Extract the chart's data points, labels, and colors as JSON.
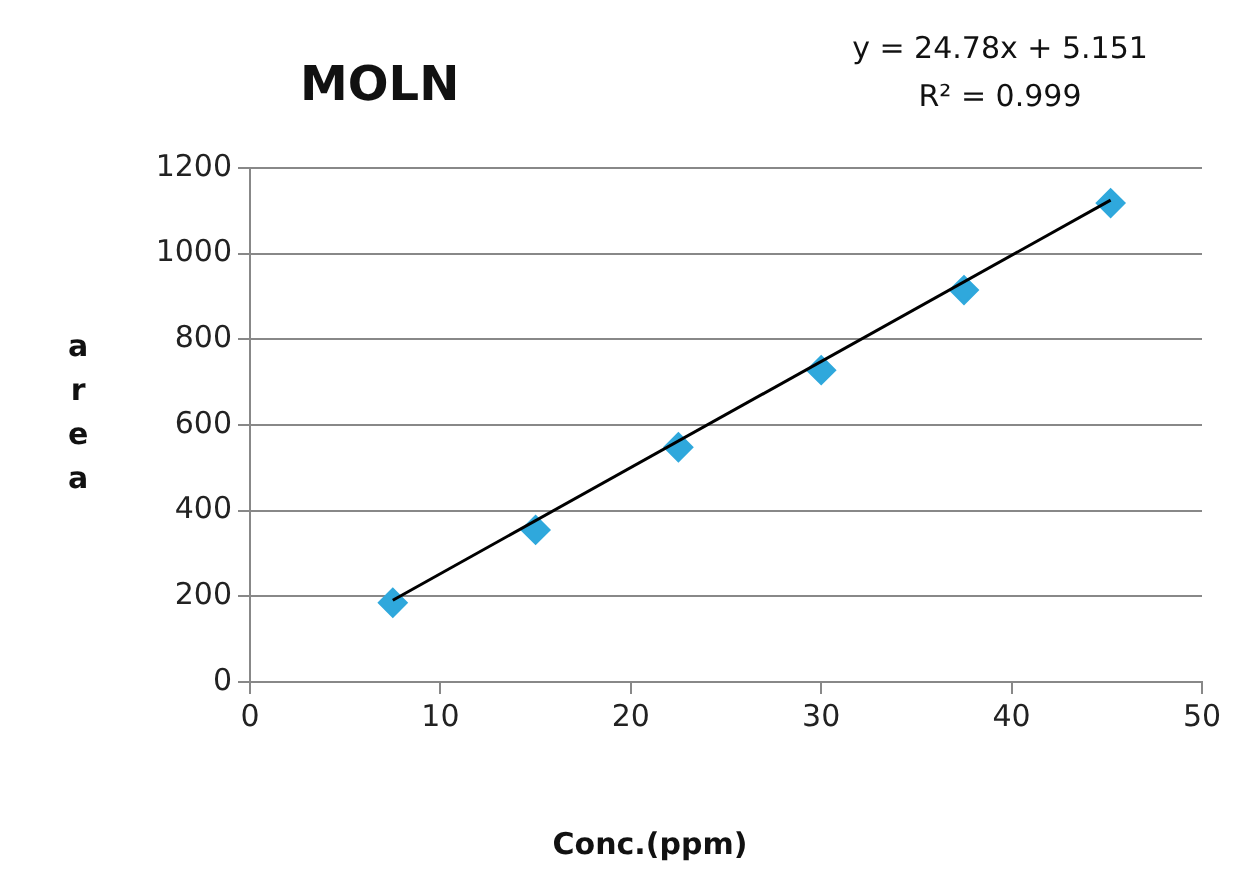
{
  "chart_data": {
    "type": "scatter",
    "title": "MOLN",
    "xlabel": "Conc.(ppm)",
    "ylabel": "area",
    "annotations": [
      "y = 24.78x + 5.151",
      "R² = 0.999"
    ],
    "xlim": [
      0,
      50
    ],
    "xticks": [
      0,
      10,
      20,
      30,
      40,
      50
    ],
    "ylim": [
      0,
      1200
    ],
    "yticks": [
      0,
      200,
      400,
      600,
      800,
      1000,
      1200
    ],
    "grid": "y",
    "legend": false,
    "marker": "diamond",
    "series": [
      {
        "type": "scatter",
        "color": "#2fa8dc",
        "x": [
          7.5,
          15,
          22.5,
          30,
          37.5,
          45.2
        ],
        "values": [
          185,
          355,
          548,
          728,
          915,
          1118
        ]
      },
      {
        "type": "line",
        "color": "#000000",
        "marker": "none",
        "x": [
          7.5,
          45.2
        ],
        "values": [
          191,
          1125
        ]
      }
    ]
  }
}
